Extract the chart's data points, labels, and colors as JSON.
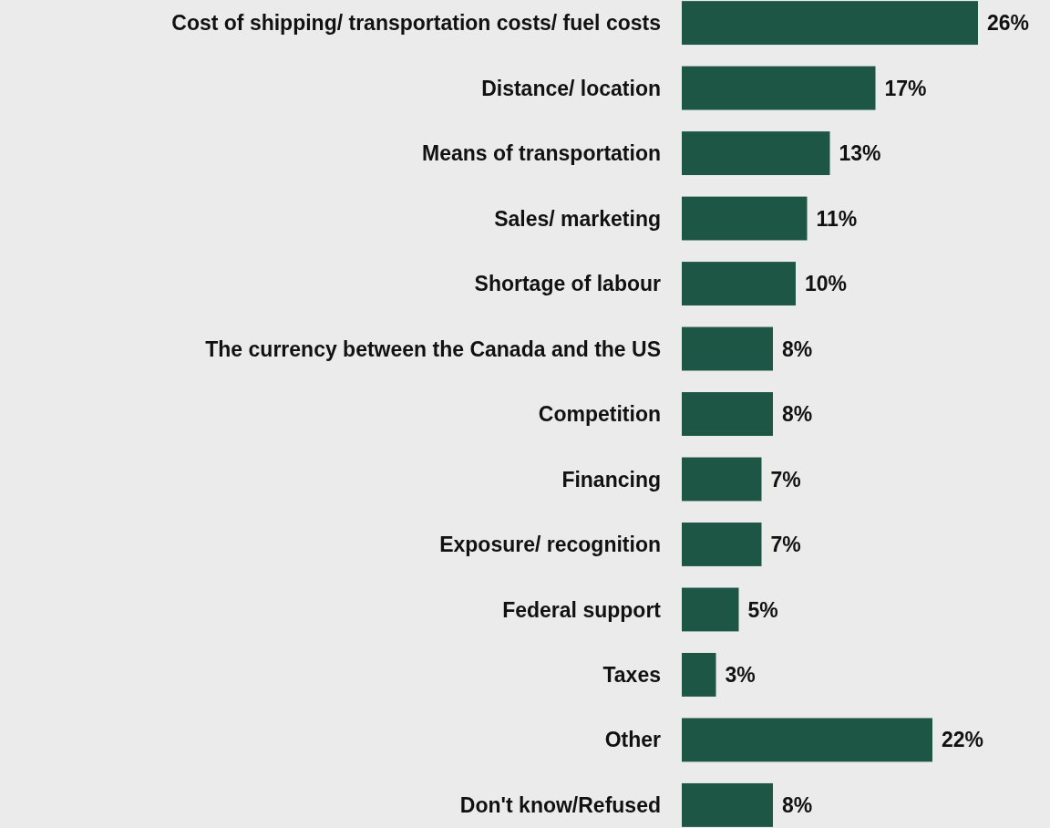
{
  "chart_data": {
    "type": "bar",
    "orientation": "horizontal",
    "categories": [
      "Cost of shipping/ transportation costs/ fuel costs",
      "Distance/ location",
      "Means of transportation",
      "Sales/ marketing",
      "Shortage of labour",
      "The currency between the Canada and the US",
      "Competition",
      "Financing",
      "Exposure/ recognition",
      "Federal support",
      "Taxes",
      "Other",
      "Don't know/Refused"
    ],
    "values": [
      26,
      17,
      13,
      11,
      10,
      8,
      8,
      7,
      7,
      5,
      3,
      22,
      8
    ],
    "value_labels": [
      "26%",
      "17%",
      "13%",
      "11%",
      "10%",
      "8%",
      "8%",
      "7%",
      "7%",
      "5%",
      "3%",
      "22%",
      "8%"
    ],
    "color": "#1e5646"
  }
}
